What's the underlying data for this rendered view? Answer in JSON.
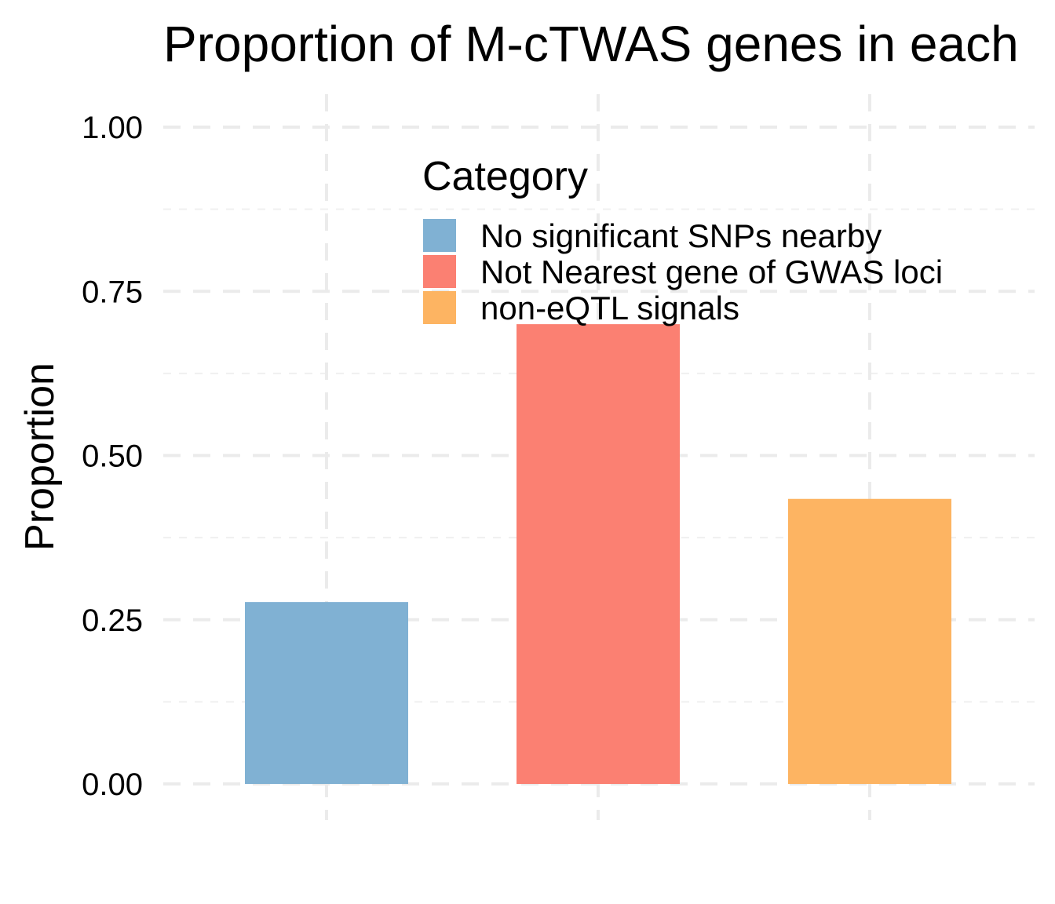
{
  "chart_data": {
    "type": "bar",
    "title": "Proportion of M-cTWAS genes in each",
    "xlabel": "",
    "ylabel": "Proportion",
    "categories": [
      "No significant SNPs nearby",
      "Not Nearest gene of GWAS loci",
      "non-eQTL signals"
    ],
    "values": [
      0.277,
      0.7,
      0.434
    ],
    "colors": [
      "#80b1d3",
      "#fb8072",
      "#fdb462"
    ],
    "ylim": [
      0,
      1
    ],
    "yticks": [
      "0.00",
      "0.25",
      "0.50",
      "0.75",
      "1.00"
    ],
    "grid": true,
    "legend": {
      "title": "Category",
      "placement": "top-center",
      "entries": [
        "No significant SNPs nearby",
        "Not Nearest gene of GWAS loci",
        "non-eQTL signals"
      ]
    }
  }
}
